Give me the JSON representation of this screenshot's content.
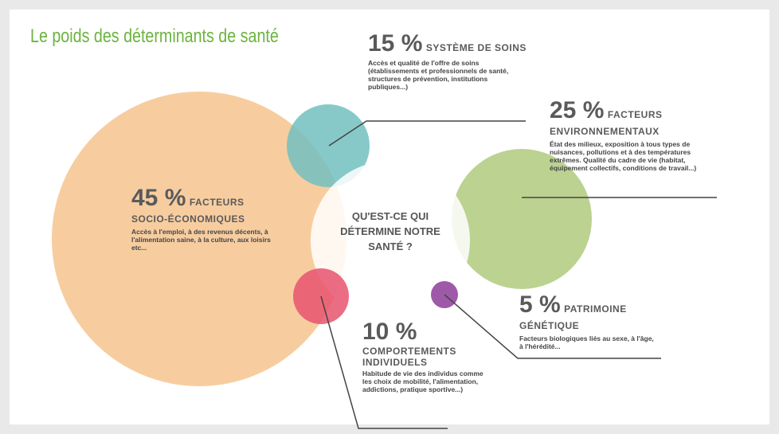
{
  "title": "Le poids des déterminants de santé",
  "center": "QU'EST-CE QUI DÉTERMINE NOTRE SANTÉ ?",
  "items": [
    {
      "percent": "15 %",
      "label": "SYSTÈME DE SOINS",
      "description": "Accès et qualité de l'offre de soins (établissements et professionnels de santé, structures de prévention, institutions publiques...)"
    },
    {
      "percent": "25 %",
      "label": "FACTEURS ENVIRONNEMENTAUX",
      "description": "État des milieux, exposition à tous types de nuisances, pollutions et à des températures extrêmes. Qualité du cadre de vie (habitat, équipement collectifs, conditions de travail...)"
    },
    {
      "percent": "45 %",
      "label": "FACTEURS SOCIO-ÉCONOMIQUES",
      "description": "Accès à l'emploi, à des revenus décents, à l'alimentation saine, à la culture, aux loisirs etc..."
    },
    {
      "percent": "10 %",
      "label": "COMPORTEMENTS INDIVIDUELS",
      "description": "Habitude de vie des individus comme les choix de mobilité, l'alimentation, addictions, pratique sportive...)"
    },
    {
      "percent": "5 %",
      "label": "PATRIMOINE GÉNÉTIQUE",
      "description": "Facteurs biologiques liés au sexe, à l'âge, à l'hérédité..."
    }
  ]
}
